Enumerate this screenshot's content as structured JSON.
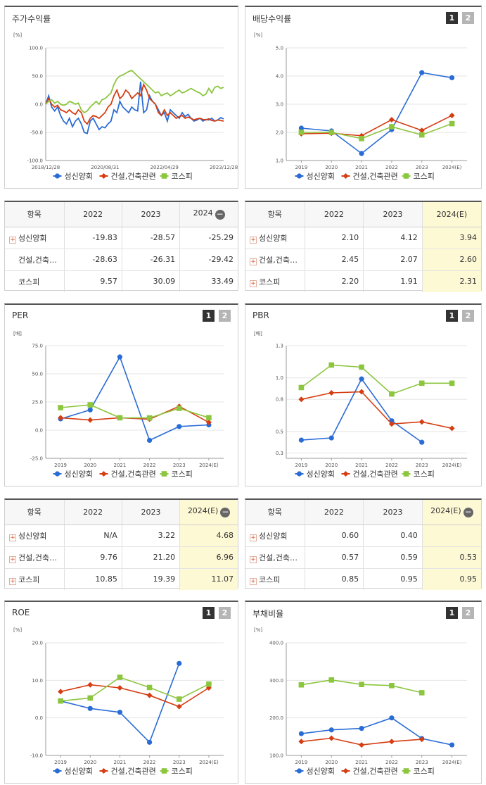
{
  "legend": [
    "성신양회",
    "건설,건축관련",
    "코스피"
  ],
  "colors": {
    "company": "#2a6cd6",
    "industry": "#d63d12",
    "kospi": "#8cc63f",
    "grid": "#e5e5e5",
    "axis": "#999999",
    "highlight": "#fef9d5"
  },
  "panels": {
    "stock_return": {
      "title": "주가수익률",
      "unit": "[%]"
    },
    "dividend": {
      "title": "배당수익률",
      "unit": "[%]",
      "pager": [
        "1",
        "2"
      ]
    },
    "per": {
      "title": "PER",
      "unit": "[배]",
      "pager": [
        "1",
        "2"
      ]
    },
    "pbr": {
      "title": "PBR",
      "unit": "[배]",
      "pager": [
        "1",
        "2"
      ]
    },
    "roe": {
      "title": "ROE",
      "unit": "[%]",
      "pager": [
        "1",
        "2"
      ]
    },
    "debt": {
      "title": "부채비율",
      "unit": "[%]",
      "pager": [
        "1",
        "2"
      ]
    }
  },
  "chart_data": [
    {
      "id": "stock_return",
      "type": "line",
      "x_ticks": [
        "2018/12/28",
        "2020/08/31",
        "2022/04/29",
        "2023/12/28"
      ],
      "y_ticks": [
        "100.0",
        "50.0",
        "0.0",
        "-50.0",
        "-100.0"
      ],
      "ylim": [
        -100,
        100
      ],
      "series": [
        {
          "name": "성신양회",
          "values": [
            0,
            15,
            -5,
            -12,
            -5,
            -20,
            -30,
            -35,
            -25,
            -40,
            -30,
            -25,
            -35,
            -50,
            -52,
            -30,
            -25,
            -35,
            -45,
            -40,
            -42,
            -35,
            -30,
            -10,
            -15,
            5,
            -5,
            -10,
            -15,
            -5,
            -10,
            -12,
            40,
            -15,
            -10,
            15,
            5,
            0,
            -10,
            -20,
            -15,
            -30,
            -10,
            -15,
            -20,
            -25,
            -15,
            -22,
            -18,
            -25,
            -30,
            -28,
            -25,
            -30,
            -27,
            -28,
            -25,
            -30,
            -28,
            -24,
            -26
          ]
        },
        {
          "name": "건설,건축관련",
          "values": [
            0,
            10,
            0,
            -5,
            -2,
            -10,
            -12,
            -15,
            -10,
            -15,
            -18,
            -10,
            -15,
            -30,
            -35,
            -25,
            -20,
            -22,
            -25,
            -20,
            -15,
            -5,
            0,
            15,
            25,
            10,
            15,
            25,
            20,
            10,
            15,
            20,
            15,
            35,
            25,
            10,
            5,
            0,
            -15,
            -20,
            -10,
            -20,
            -15,
            -20,
            -25,
            -22,
            -20,
            -25,
            -23,
            -25,
            -28,
            -26,
            -25,
            -27,
            -28,
            -26,
            -29,
            -30,
            -28,
            -29,
            -30
          ]
        },
        {
          "name": "코스피",
          "values": [
            0,
            5,
            8,
            2,
            5,
            0,
            -2,
            0,
            5,
            3,
            0,
            2,
            -10,
            -15,
            -12,
            -5,
            0,
            5,
            0,
            8,
            10,
            15,
            20,
            35,
            45,
            50,
            52,
            55,
            58,
            60,
            55,
            50,
            45,
            40,
            35,
            30,
            25,
            20,
            22,
            15,
            18,
            20,
            15,
            18,
            22,
            25,
            20,
            22,
            25,
            28,
            25,
            22,
            20,
            15,
            18,
            28,
            20,
            30,
            32,
            28,
            30
          ]
        }
      ]
    },
    {
      "id": "dividend",
      "type": "line",
      "x_ticks": [
        "2019",
        "2020",
        "2021",
        "2022",
        "2023",
        "2024(E)"
      ],
      "y_ticks": [
        "5.0",
        "4.0",
        "3.0",
        "2.0",
        "1.0"
      ],
      "ylim": [
        1,
        5
      ],
      "series": [
        {
          "name": "성신양회",
          "values": [
            2.15,
            2.05,
            1.25,
            2.1,
            4.12,
            3.94
          ]
        },
        {
          "name": "건설,건축관련",
          "values": [
            1.95,
            1.97,
            1.88,
            2.45,
            2.07,
            2.6
          ]
        },
        {
          "name": "코스피",
          "values": [
            2.0,
            2.0,
            1.78,
            2.2,
            1.91,
            2.31
          ]
        }
      ]
    },
    {
      "id": "per",
      "type": "line",
      "x_ticks": [
        "2019",
        "2020",
        "2021",
        "2022",
        "2023",
        "2024(E)"
      ],
      "y_ticks": [
        "75.0",
        "50.0",
        "25.0",
        "0.0",
        "-25.0"
      ],
      "ylim": [
        -25,
        75
      ],
      "series": [
        {
          "name": "성신양회",
          "values": [
            10,
            18,
            65,
            -9,
            3.22,
            4.68
          ]
        },
        {
          "name": "건설,건축관련",
          "values": [
            11,
            9,
            11,
            9.76,
            21.2,
            6.96
          ]
        },
        {
          "name": "코스피",
          "values": [
            20,
            22.5,
            11,
            10.85,
            19.39,
            11.07
          ]
        }
      ]
    },
    {
      "id": "pbr",
      "type": "line",
      "x_ticks": [
        "2019",
        "2020",
        "2021",
        "2022",
        "2023",
        "2024(E)"
      ],
      "y_ticks": [
        "1.3",
        "1.0",
        "0.8",
        "0.5",
        "0.3"
      ],
      "ylim": [
        0.25,
        1.3
      ],
      "series": [
        {
          "name": "성신양회",
          "values": [
            0.42,
            0.44,
            0.99,
            0.6,
            0.4,
            null
          ]
        },
        {
          "name": "건설,건축관련",
          "values": [
            0.8,
            0.86,
            0.87,
            0.57,
            0.59,
            0.53
          ]
        },
        {
          "name": "코스피",
          "values": [
            0.91,
            1.12,
            1.1,
            0.85,
            0.95,
            0.95
          ]
        }
      ]
    },
    {
      "id": "roe",
      "type": "line",
      "x_ticks": [
        "2019",
        "2020",
        "2021",
        "2022",
        "2023",
        "2024(E)"
      ],
      "y_ticks": [
        "20.0",
        "10.0",
        "0.0",
        "-10.0"
      ],
      "ylim": [
        -10,
        20
      ],
      "series": [
        {
          "name": "성신양회",
          "values": [
            4.5,
            2.5,
            1.5,
            -6.5,
            14.5,
            null
          ]
        },
        {
          "name": "건설,건축관련",
          "values": [
            7.0,
            8.8,
            8.0,
            6.0,
            3.0,
            8.0
          ]
        },
        {
          "name": "코스피",
          "values": [
            4.5,
            5.3,
            10.8,
            8.1,
            5.0,
            9.0
          ]
        }
      ]
    },
    {
      "id": "debt",
      "type": "line",
      "x_ticks": [
        "2019",
        "2020",
        "2021",
        "2022",
        "2023",
        "2024(E)"
      ],
      "y_ticks": [
        "400.0",
        "300.0",
        "200.0",
        "100.0"
      ],
      "ylim": [
        100,
        400
      ],
      "series": [
        {
          "name": "성신양회",
          "values": [
            158,
            168,
            172,
            200,
            145,
            128
          ]
        },
        {
          "name": "건설,건축관련",
          "values": [
            137,
            146,
            128,
            137,
            143,
            null
          ]
        },
        {
          "name": "코스피",
          "values": [
            288,
            301,
            289,
            286,
            267,
            null
          ]
        }
      ]
    }
  ],
  "tables": {
    "stock_return": {
      "headers": [
        "항목",
        "2022",
        "2023",
        "2024"
      ],
      "rows": [
        {
          "name": "성신양회",
          "values": [
            "-19.83",
            "-28.57",
            "-25.29"
          ]
        },
        {
          "name": "건설,건축…",
          "values": [
            "-28.63",
            "-26.31",
            "-29.42"
          ]
        },
        {
          "name": "코스피",
          "values": [
            "9.57",
            "30.09",
            "33.49"
          ]
        }
      ]
    },
    "dividend": {
      "headers": [
        "항목",
        "2022",
        "2023",
        "2024(E)"
      ],
      "rows": [
        {
          "name": "성신양회",
          "values": [
            "2.10",
            "4.12",
            "3.94"
          ]
        },
        {
          "name": "건설,건축…",
          "values": [
            "2.45",
            "2.07",
            "2.60"
          ]
        },
        {
          "name": "코스피",
          "values": [
            "2.20",
            "1.91",
            "2.31"
          ]
        }
      ]
    },
    "per": {
      "headers": [
        "항목",
        "2022",
        "2023",
        "2024(E)"
      ],
      "rows": [
        {
          "name": "성신양회",
          "values": [
            "N/A",
            "3.22",
            "4.68"
          ]
        },
        {
          "name": "건설,건축…",
          "values": [
            "9.76",
            "21.20",
            "6.96"
          ]
        },
        {
          "name": "코스피",
          "values": [
            "10.85",
            "19.39",
            "11.07"
          ]
        }
      ]
    },
    "pbr": {
      "headers": [
        "항목",
        "2022",
        "2023",
        "2024(E)"
      ],
      "rows": [
        {
          "name": "성신양회",
          "values": [
            "0.60",
            "0.40",
            ""
          ]
        },
        {
          "name": "건설,건축…",
          "values": [
            "0.57",
            "0.59",
            "0.53"
          ]
        },
        {
          "name": "코스피",
          "values": [
            "0.85",
            "0.95",
            "0.95"
          ]
        }
      ]
    }
  }
}
